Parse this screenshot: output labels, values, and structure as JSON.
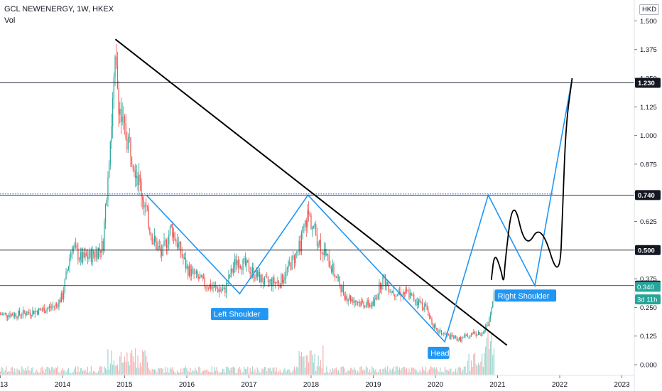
{
  "header": {
    "title": "GCL NEWENERGY, 1W, HKEX",
    "subtitle": "Vol",
    "currency": "HKD"
  },
  "chart_data": {
    "type": "candlestick",
    "title": "GCL NEWENERGY, 1W, HKEX",
    "currency": "HKD",
    "x_ticks": [
      "13",
      "2014",
      "2015",
      "2016",
      "2017",
      "2018",
      "2019",
      "2020",
      "2021",
      "2022",
      "2023"
    ],
    "y_ticks": [
      "1.500",
      "1.375",
      "1.250",
      "1.125",
      "1.000",
      "0.875",
      "0.750",
      "0.625",
      "0.500",
      "0.375",
      "0.250",
      "0.125",
      "0.000"
    ],
    "ylim": [
      0.0,
      1.5
    ],
    "price_path": [
      {
        "x": 2013.3,
        "y": 0.22
      },
      {
        "x": 2013.7,
        "y": 0.24
      },
      {
        "x": 2013.9,
        "y": 0.26
      },
      {
        "x": 2014.0,
        "y": 0.3
      },
      {
        "x": 2014.15,
        "y": 0.52
      },
      {
        "x": 2014.3,
        "y": 0.46
      },
      {
        "x": 2014.5,
        "y": 0.48
      },
      {
        "x": 2014.65,
        "y": 0.52
      },
      {
        "x": 2014.75,
        "y": 0.92
      },
      {
        "x": 2014.85,
        "y": 1.3
      },
      {
        "x": 2014.95,
        "y": 1.05
      },
      {
        "x": 2015.1,
        "y": 0.95
      },
      {
        "x": 2015.25,
        "y": 0.78
      },
      {
        "x": 2015.45,
        "y": 0.55
      },
      {
        "x": 2015.6,
        "y": 0.48
      },
      {
        "x": 2015.75,
        "y": 0.6
      },
      {
        "x": 2016.0,
        "y": 0.42
      },
      {
        "x": 2016.3,
        "y": 0.35
      },
      {
        "x": 2016.6,
        "y": 0.32
      },
      {
        "x": 2016.8,
        "y": 0.46
      },
      {
        "x": 2017.0,
        "y": 0.42
      },
      {
        "x": 2017.25,
        "y": 0.36
      },
      {
        "x": 2017.5,
        "y": 0.36
      },
      {
        "x": 2017.8,
        "y": 0.5
      },
      {
        "x": 2017.95,
        "y": 0.66
      },
      {
        "x": 2018.1,
        "y": 0.55
      },
      {
        "x": 2018.3,
        "y": 0.44
      },
      {
        "x": 2018.55,
        "y": 0.3
      },
      {
        "x": 2018.8,
        "y": 0.27
      },
      {
        "x": 2019.0,
        "y": 0.26
      },
      {
        "x": 2019.15,
        "y": 0.38
      },
      {
        "x": 2019.3,
        "y": 0.32
      },
      {
        "x": 2019.55,
        "y": 0.31
      },
      {
        "x": 2019.85,
        "y": 0.25
      },
      {
        "x": 2020.0,
        "y": 0.15
      },
      {
        "x": 2020.2,
        "y": 0.125
      },
      {
        "x": 2020.4,
        "y": 0.11
      },
      {
        "x": 2020.6,
        "y": 0.14
      },
      {
        "x": 2020.75,
        "y": 0.13
      },
      {
        "x": 2020.85,
        "y": 0.18
      },
      {
        "x": 2020.95,
        "y": 0.34
      }
    ],
    "horizontal_levels": [
      {
        "value": 1.23,
        "label": "1.230",
        "style": "solid"
      },
      {
        "value": 0.74,
        "label": "0.740",
        "style": "solid"
      },
      {
        "value": 0.5,
        "label": "0.500",
        "style": "solid"
      },
      {
        "value": 0.345,
        "label": "0.345",
        "style": "solid"
      }
    ],
    "dotted_level": {
      "value": 0.745,
      "color": "#2962ff"
    },
    "price_badges": [
      {
        "text": "0.340",
        "value": 0.34,
        "color": "#26a69a"
      },
      {
        "text": "3d 11h",
        "value": 0.285,
        "color": "#26a69a"
      }
    ],
    "trendline": {
      "start": {
        "x": 2014.85,
        "y": 1.42
      },
      "end": {
        "x": 2021.15,
        "y": 0.085
      },
      "color": "#000000"
    },
    "pattern_line": {
      "color": "#2196f3",
      "points": [
        {
          "x": 2015.35,
          "y": 0.74
        },
        {
          "x": 2016.85,
          "y": 0.31
        },
        {
          "x": 2017.95,
          "y": 0.74
        },
        {
          "x": 2020.15,
          "y": 0.1
        },
        {
          "x": 2020.85,
          "y": 0.74
        },
        {
          "x": 2021.6,
          "y": 0.345
        },
        {
          "x": 2022.2,
          "y": 1.25
        }
      ]
    },
    "freehand_path": {
      "color": "#000000",
      "points": [
        {
          "x": 2020.9,
          "y": 0.37
        },
        {
          "x": 2020.95,
          "y": 0.49
        },
        {
          "x": 2021.05,
          "y": 0.42
        },
        {
          "x": 2021.1,
          "y": 0.35
        },
        {
          "x": 2021.12,
          "y": 0.45
        },
        {
          "x": 2021.25,
          "y": 0.74
        },
        {
          "x": 2021.45,
          "y": 0.5
        },
        {
          "x": 2021.7,
          "y": 0.62
        },
        {
          "x": 2022.0,
          "y": 0.35
        },
        {
          "x": 2022.05,
          "y": 0.7
        },
        {
          "x": 2022.1,
          "y": 1.05
        },
        {
          "x": 2022.2,
          "y": 1.25
        }
      ]
    },
    "annotations": [
      {
        "text": "Left Shoulder",
        "x": 2016.85,
        "y": 0.22
      },
      {
        "text": "Head",
        "x": 2020.05,
        "y": 0.05
      },
      {
        "text": "Right Shoulder",
        "x": 2021.45,
        "y": 0.3
      }
    ],
    "colors": {
      "up": "#26a69a",
      "down": "#ef5350",
      "axis_text": "#131722",
      "grid": "none"
    },
    "grid": false,
    "legend": "none"
  }
}
